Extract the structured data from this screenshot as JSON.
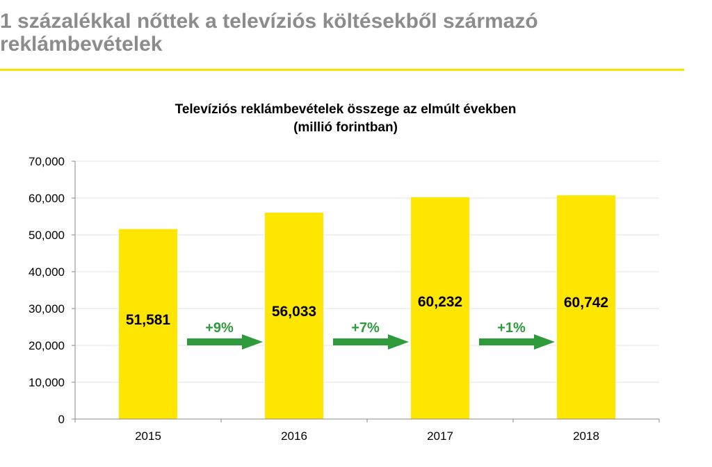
{
  "page": {
    "heading": "1 százalékkal nőttek a televíziós költésekből származó reklámbevételek"
  },
  "colors": {
    "heading_text": "#8c8c8c",
    "rule": "#f7e200",
    "bar": "#ffe600",
    "arrow": "#2e9a3c",
    "growth_text": "#2e9a3c",
    "axis_text": "#000000"
  },
  "chart_data": {
    "type": "bar",
    "title": "Televíziós reklámbevételek összege az elmúlt években",
    "subtitle": "(millió forintban)",
    "categories": [
      "2015",
      "2016",
      "2017",
      "2018"
    ],
    "values": [
      51581,
      56033,
      60232,
      60742
    ],
    "value_labels": [
      "51,581",
      "56,033",
      "60,232",
      "60,742"
    ],
    "ylim": [
      0,
      70000
    ],
    "yticks": [
      0,
      10000,
      20000,
      30000,
      40000,
      50000,
      60000,
      70000
    ],
    "ytick_labels": [
      "0",
      "10,000",
      "20,000",
      "30,000",
      "40,000",
      "50,000",
      "60,000",
      "70,000"
    ],
    "xlabel": "",
    "ylabel": "",
    "grid": true,
    "legend": "none",
    "growth": [
      {
        "from": "2015",
        "to": "2016",
        "label": "+9%"
      },
      {
        "from": "2016",
        "to": "2017",
        "label": "+7%"
      },
      {
        "from": "2017",
        "to": "2018",
        "label": "+1%"
      }
    ]
  }
}
